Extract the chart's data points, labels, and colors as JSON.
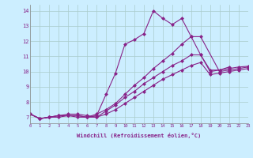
{
  "xlabel": "Windchill (Refroidissement éolien,°C)",
  "background_color": "#cceeff",
  "grid_color": "#aacccc",
  "line_color": "#882288",
  "xlim": [
    0,
    23
  ],
  "ylim": [
    6.6,
    14.4
  ],
  "xticks": [
    0,
    1,
    2,
    3,
    4,
    5,
    6,
    7,
    8,
    9,
    10,
    11,
    12,
    13,
    14,
    15,
    16,
    17,
    18,
    19,
    20,
    21,
    22,
    23
  ],
  "yticks": [
    7,
    8,
    9,
    10,
    11,
    12,
    13,
    14
  ],
  "series": [
    {
      "x": [
        0,
        1,
        2,
        3,
        4,
        5,
        6,
        7,
        8,
        9,
        10,
        11,
        12,
        13,
        14,
        15,
        16,
        17,
        18,
        19,
        20,
        21
      ],
      "y": [
        7.2,
        6.9,
        7.0,
        7.1,
        7.1,
        7.1,
        7.0,
        7.1,
        8.5,
        9.9,
        11.8,
        12.1,
        12.5,
        14.0,
        13.5,
        13.1,
        13.5,
        12.3,
        11.1,
        10.1,
        10.1,
        10.3
      ]
    },
    {
      "x": [
        0,
        1,
        2,
        3,
        4,
        5,
        6,
        7,
        8,
        9,
        10,
        11,
        12,
        13,
        14,
        15,
        16,
        17,
        18,
        20,
        21,
        22,
        23
      ],
      "y": [
        7.2,
        6.9,
        7.0,
        7.1,
        7.1,
        7.1,
        7.0,
        7.2,
        7.5,
        7.9,
        8.5,
        9.1,
        9.6,
        10.2,
        10.7,
        11.2,
        11.8,
        12.3,
        12.3,
        10.0,
        10.1,
        10.2,
        10.3
      ]
    },
    {
      "x": [
        0,
        1,
        2,
        3,
        4,
        5,
        6,
        7,
        8,
        9,
        10,
        11,
        12,
        13,
        14,
        15,
        16,
        17,
        18,
        19,
        20,
        21,
        22,
        23
      ],
      "y": [
        7.2,
        6.9,
        7.0,
        7.1,
        7.2,
        7.2,
        7.1,
        7.0,
        7.4,
        7.8,
        8.3,
        8.7,
        9.2,
        9.6,
        10.0,
        10.4,
        10.7,
        11.1,
        11.1,
        10.0,
        10.1,
        10.2,
        10.3,
        10.35
      ]
    },
    {
      "x": [
        0,
        1,
        2,
        3,
        4,
        5,
        6,
        7,
        8,
        9,
        10,
        11,
        12,
        13,
        14,
        15,
        16,
        17,
        18,
        19,
        20,
        21,
        22,
        23
      ],
      "y": [
        7.2,
        6.9,
        7.0,
        7.0,
        7.1,
        7.0,
        7.0,
        7.0,
        7.2,
        7.5,
        7.9,
        8.3,
        8.7,
        9.1,
        9.5,
        9.8,
        10.1,
        10.4,
        10.6,
        9.8,
        9.9,
        10.0,
        10.1,
        10.2
      ]
    }
  ]
}
